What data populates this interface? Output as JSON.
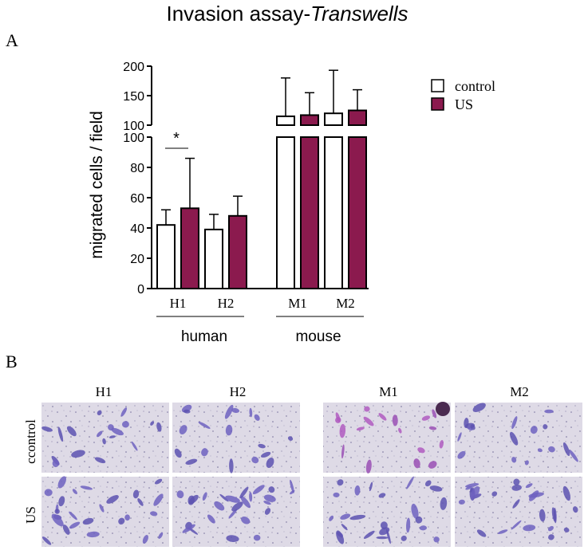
{
  "figure": {
    "title_main": "Invasion assay-",
    "title_italic": "Transwells",
    "panel_a_label": "A",
    "panel_b_label": "B"
  },
  "chart_data": {
    "type": "bar",
    "title": "",
    "ylabel": "migrated cells / field",
    "xlabel": "",
    "categories": [
      "H1",
      "H2",
      "M1",
      "M2"
    ],
    "groups": [
      {
        "label": "human",
        "categories": [
          "H1",
          "H2"
        ]
      },
      {
        "label": "mouse",
        "categories": [
          "M1",
          "M2"
        ]
      }
    ],
    "series": [
      {
        "name": "control",
        "values": [
          42,
          39,
          115,
          120
        ],
        "errors": [
          10,
          10,
          65,
          73
        ],
        "color": "#ffffff"
      },
      {
        "name": "US",
        "values": [
          53,
          48,
          117,
          125
        ],
        "errors": [
          33,
          13,
          38,
          35
        ],
        "color": "#8b1a4e"
      }
    ],
    "axis_break": {
      "lower_range": [
        0,
        100
      ],
      "lower_ticks": [
        0,
        20,
        40,
        60,
        80,
        100
      ],
      "upper_range": [
        100,
        200
      ],
      "upper_ticks": [
        100,
        150,
        200
      ]
    },
    "annotations": [
      {
        "text": "*",
        "between": [
          "H1 control",
          "H1 US"
        ]
      }
    ],
    "legend_position": "top-right",
    "grid": false
  },
  "micrographs": {
    "columns": [
      "H1",
      "H2",
      "M1",
      "M2"
    ],
    "rows": [
      "ccontrol",
      "US"
    ]
  },
  "colors": {
    "us_bar": "#8b1a4e",
    "control_bar": "#ffffff",
    "stain_blue": "#5d52b0",
    "stain_violet": "#9a4fb4",
    "background_field": "#dcd8e3"
  }
}
